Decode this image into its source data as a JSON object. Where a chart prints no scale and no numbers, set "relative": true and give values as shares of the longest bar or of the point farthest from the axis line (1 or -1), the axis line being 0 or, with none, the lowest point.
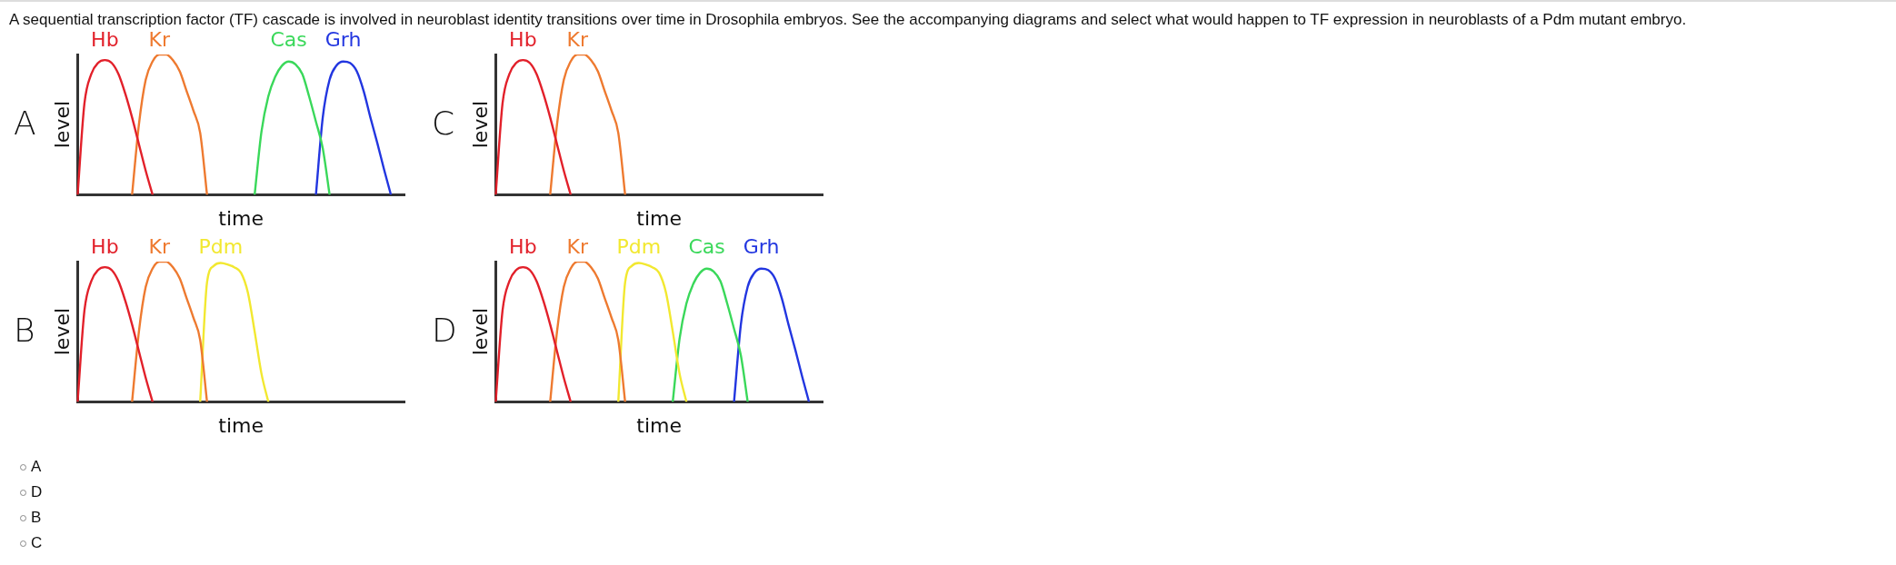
{
  "chart_data": [
    {
      "type": "line",
      "title": "A",
      "xlabel": "time",
      "ylabel": "level",
      "relative": true,
      "legend": false,
      "marker": "none",
      "line_style": "solid",
      "annotations": [
        "A sequential transcription factor (TF) cascade is involved in neuroblast identity transitions over time in Drosophila embryos. See the accompanying diagrams and select what would happen to TF expression in neuroblasts of a Pdm mutant embryo.",
        "A",
        "D",
        "B",
        "C"
      ],
      "categories": [
        null,
        null,
        null,
        null,
        null,
        null,
        null,
        null,
        null,
        null,
        null,
        null,
        null,
        null,
        null,
        null,
        null,
        null,
        null,
        null,
        null,
        null,
        null,
        null,
        null,
        null,
        null,
        null,
        null,
        null,
        null,
        null,
        null,
        null,
        null,
        null,
        null,
        null,
        null,
        null,
        null,
        null,
        null,
        null,
        null,
        null,
        null,
        null,
        null
      ],
      "series": [
        {
          "name": "Hb",
          "color": "#e2202a",
          "values": [
            0,
            0.65,
            0.86,
            0.94,
            0.96,
            0.94,
            0.86,
            0.72,
            0.55,
            0.36,
            0.17,
            0,
            null,
            null,
            null,
            null,
            null,
            null,
            null,
            null,
            null,
            null,
            null,
            null,
            null,
            null,
            null,
            null,
            null,
            null,
            null,
            null,
            null,
            null,
            null,
            null,
            null,
            null,
            null,
            null,
            null,
            null,
            null,
            null,
            null,
            null,
            null,
            null,
            null
          ]
        },
        {
          "name": "Kr",
          "color": "#ee7a30",
          "values": [
            null,
            null,
            null,
            null,
            null,
            null,
            null,
            null,
            0,
            0.5,
            0.82,
            0.95,
            1,
            1,
            0.96,
            0.88,
            0.74,
            0.6,
            0.44,
            0,
            null,
            null,
            null,
            null,
            null,
            null,
            null,
            null,
            null,
            null,
            null,
            null,
            null,
            null,
            null,
            null,
            null,
            null,
            null,
            null,
            null,
            null,
            null,
            null,
            null,
            null,
            null,
            null,
            null
          ]
        },
        {
          "name": "Cas",
          "color": "#3ad85a",
          "values": [
            null,
            null,
            null,
            null,
            null,
            null,
            null,
            null,
            null,
            null,
            null,
            null,
            null,
            null,
            null,
            null,
            null,
            null,
            null,
            null,
            null,
            null,
            null,
            null,
            null,
            null,
            0,
            0.45,
            0.7,
            0.84,
            0.92,
            0.95,
            0.93,
            0.86,
            0.7,
            0.52,
            0.33,
            0,
            null,
            null,
            null,
            null,
            null,
            null,
            null,
            null,
            null,
            null,
            null
          ]
        },
        {
          "name": "Grh",
          "color": "#2236e0",
          "values": [
            null,
            null,
            null,
            null,
            null,
            null,
            null,
            null,
            null,
            null,
            null,
            null,
            null,
            null,
            null,
            null,
            null,
            null,
            null,
            null,
            null,
            null,
            null,
            null,
            null,
            null,
            null,
            null,
            null,
            null,
            null,
            null,
            null,
            null,
            null,
            0,
            0.55,
            0.82,
            0.92,
            0.95,
            0.94,
            0.88,
            0.74,
            0.55,
            0.37,
            0.18,
            0,
            null,
            null
          ]
        }
      ]
    },
    {
      "type": "line",
      "title": "C",
      "xlabel": "time",
      "ylabel": "level",
      "relative": true,
      "legend": false,
      "marker": "none",
      "line_style": "solid",
      "categories": [
        null,
        null,
        null,
        null,
        null,
        null,
        null,
        null,
        null,
        null,
        null,
        null,
        null,
        null,
        null,
        null,
        null,
        null,
        null,
        null,
        null,
        null,
        null,
        null,
        null,
        null,
        null,
        null,
        null,
        null,
        null,
        null,
        null,
        null,
        null,
        null,
        null,
        null,
        null,
        null,
        null,
        null,
        null,
        null,
        null,
        null,
        null,
        null,
        null
      ],
      "series": [
        {
          "name": "Hb",
          "color": "#e2202a",
          "values": [
            0,
            0.65,
            0.86,
            0.94,
            0.96,
            0.94,
            0.86,
            0.72,
            0.55,
            0.36,
            0.17,
            0,
            null,
            null,
            null,
            null,
            null,
            null,
            null,
            null,
            null,
            null,
            null,
            null,
            null,
            null,
            null,
            null,
            null,
            null,
            null,
            null,
            null,
            null,
            null,
            null,
            null,
            null,
            null,
            null,
            null,
            null,
            null,
            null,
            null,
            null,
            null,
            null,
            null
          ]
        },
        {
          "name": "Kr",
          "color": "#ee7a30",
          "values": [
            null,
            null,
            null,
            null,
            null,
            null,
            null,
            null,
            0,
            0.5,
            0.82,
            0.95,
            1,
            1,
            0.96,
            0.88,
            0.74,
            0.6,
            0.44,
            0,
            null,
            null,
            null,
            null,
            null,
            null,
            null,
            null,
            null,
            null,
            null,
            null,
            null,
            null,
            null,
            null,
            null,
            null,
            null,
            null,
            null,
            null,
            null,
            null,
            null,
            null,
            null,
            null,
            null
          ]
        }
      ]
    },
    {
      "type": "line",
      "title": "B",
      "xlabel": "time",
      "ylabel": "level",
      "relative": true,
      "legend": false,
      "marker": "none",
      "line_style": "solid",
      "categories": [
        null,
        null,
        null,
        null,
        null,
        null,
        null,
        null,
        null,
        null,
        null,
        null,
        null,
        null,
        null,
        null,
        null,
        null,
        null,
        null,
        null,
        null,
        null,
        null,
        null,
        null,
        null,
        null,
        null,
        null,
        null,
        null,
        null,
        null,
        null,
        null,
        null,
        null,
        null,
        null,
        null,
        null,
        null,
        null,
        null,
        null,
        null,
        null,
        null
      ],
      "series": [
        {
          "name": "Hb",
          "color": "#e2202a",
          "values": [
            0,
            0.65,
            0.86,
            0.94,
            0.96,
            0.94,
            0.86,
            0.72,
            0.55,
            0.36,
            0.17,
            0,
            null,
            null,
            null,
            null,
            null,
            null,
            null,
            null,
            null,
            null,
            null,
            null,
            null,
            null,
            null,
            null,
            null,
            null,
            null,
            null,
            null,
            null,
            null,
            null,
            null,
            null,
            null,
            null,
            null,
            null,
            null,
            null,
            null,
            null,
            null,
            null,
            null
          ]
        },
        {
          "name": "Kr",
          "color": "#ee7a30",
          "values": [
            null,
            null,
            null,
            null,
            null,
            null,
            null,
            null,
            0,
            0.5,
            0.82,
            0.95,
            1,
            1,
            0.96,
            0.88,
            0.74,
            0.6,
            0.44,
            0,
            null,
            null,
            null,
            null,
            null,
            null,
            null,
            null,
            null,
            null,
            null,
            null,
            null,
            null,
            null,
            null,
            null,
            null,
            null,
            null,
            null,
            null,
            null,
            null,
            null,
            null,
            null,
            null,
            null
          ]
        },
        {
          "name": "Pdm",
          "color": "#f2e830",
          "values": [
            null,
            null,
            null,
            null,
            null,
            null,
            null,
            null,
            null,
            null,
            null,
            null,
            null,
            null,
            null,
            null,
            null,
            null,
            0,
            0.85,
            0.97,
            0.99,
            0.98,
            0.96,
            0.92,
            0.78,
            0.5,
            0.2,
            0,
            null,
            null,
            null,
            null,
            null,
            null,
            null,
            null,
            null,
            null,
            null,
            null,
            null,
            null,
            null,
            null,
            null,
            null,
            null,
            null
          ]
        }
      ]
    },
    {
      "type": "line",
      "title": "D",
      "xlabel": "time",
      "ylabel": "level",
      "relative": true,
      "legend": false,
      "marker": "none",
      "line_style": "solid",
      "categories": [
        null,
        null,
        null,
        null,
        null,
        null,
        null,
        null,
        null,
        null,
        null,
        null,
        null,
        null,
        null,
        null,
        null,
        null,
        null,
        null,
        null,
        null,
        null,
        null,
        null,
        null,
        null,
        null,
        null,
        null,
        null,
        null,
        null,
        null,
        null,
        null,
        null,
        null,
        null,
        null,
        null,
        null,
        null,
        null,
        null,
        null,
        null,
        null,
        null
      ],
      "series": [
        {
          "name": "Hb",
          "color": "#e2202a",
          "values": [
            0,
            0.65,
            0.86,
            0.94,
            0.96,
            0.94,
            0.86,
            0.72,
            0.55,
            0.36,
            0.17,
            0,
            null,
            null,
            null,
            null,
            null,
            null,
            null,
            null,
            null,
            null,
            null,
            null,
            null,
            null,
            null,
            null,
            null,
            null,
            null,
            null,
            null,
            null,
            null,
            null,
            null,
            null,
            null,
            null,
            null,
            null,
            null,
            null,
            null,
            null,
            null,
            null,
            null
          ]
        },
        {
          "name": "Kr",
          "color": "#ee7a30",
          "values": [
            null,
            null,
            null,
            null,
            null,
            null,
            null,
            null,
            0,
            0.5,
            0.82,
            0.95,
            1,
            1,
            0.96,
            0.88,
            0.74,
            0.6,
            0.44,
            0,
            null,
            null,
            null,
            null,
            null,
            null,
            null,
            null,
            null,
            null,
            null,
            null,
            null,
            null,
            null,
            null,
            null,
            null,
            null,
            null,
            null,
            null,
            null,
            null,
            null,
            null,
            null,
            null,
            null
          ]
        },
        {
          "name": "Pdm",
          "color": "#f2e830",
          "values": [
            null,
            null,
            null,
            null,
            null,
            null,
            null,
            null,
            null,
            null,
            null,
            null,
            null,
            null,
            null,
            null,
            null,
            null,
            0,
            0.85,
            0.97,
            0.99,
            0.98,
            0.96,
            0.92,
            0.78,
            0.5,
            0.2,
            0,
            null,
            null,
            null,
            null,
            null,
            null,
            null,
            null,
            null,
            null,
            null,
            null,
            null,
            null,
            null,
            null,
            null,
            null,
            null,
            null
          ]
        },
        {
          "name": "Cas",
          "color": "#3ad85a",
          "values": [
            null,
            null,
            null,
            null,
            null,
            null,
            null,
            null,
            null,
            null,
            null,
            null,
            null,
            null,
            null,
            null,
            null,
            null,
            null,
            null,
            null,
            null,
            null,
            null,
            null,
            null,
            0,
            0.45,
            0.7,
            0.84,
            0.92,
            0.95,
            0.93,
            0.86,
            0.7,
            0.52,
            0.33,
            0,
            null,
            null,
            null,
            null,
            null,
            null,
            null,
            null,
            null,
            null,
            null
          ]
        },
        {
          "name": "Grh",
          "color": "#2236e0",
          "values": [
            null,
            null,
            null,
            null,
            null,
            null,
            null,
            null,
            null,
            null,
            null,
            null,
            null,
            null,
            null,
            null,
            null,
            null,
            null,
            null,
            null,
            null,
            null,
            null,
            null,
            null,
            null,
            null,
            null,
            null,
            null,
            null,
            null,
            null,
            null,
            0,
            0.55,
            0.82,
            0.92,
            0.95,
            0.94,
            0.88,
            0.74,
            0.55,
            0.37,
            0.18,
            0,
            null,
            null
          ]
        }
      ]
    }
  ]
}
